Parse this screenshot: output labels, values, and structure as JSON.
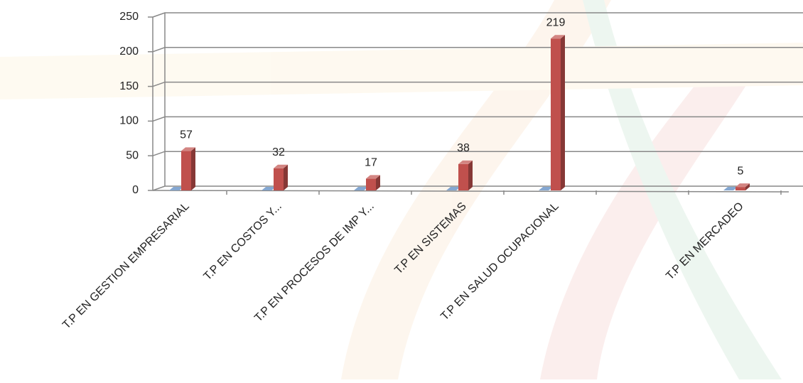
{
  "chart_data": {
    "type": "bar3d",
    "categories": [
      "T.P EN GESTION EMPRESARIAL",
      "T.P  EN COSTOS Y...",
      "T.P  EN PROCESOS DE IMP Y...",
      "T.P  EN SISTEMAS",
      "T.P  EN SALUD OCUPACIONAL",
      null,
      "T.P  EN MERCADEO"
    ],
    "series": [
      {
        "color": "#4f81bd",
        "values": [
          0,
          0,
          0,
          0,
          0,
          null,
          0
        ]
      },
      {
        "color": "#c0504d",
        "values": [
          57,
          32,
          17,
          38,
          219,
          null,
          5
        ]
      }
    ],
    "ylim": [
      0,
      250
    ],
    "yticks": [
      0,
      50,
      100,
      150,
      200,
      250
    ],
    "grid": true
  }
}
